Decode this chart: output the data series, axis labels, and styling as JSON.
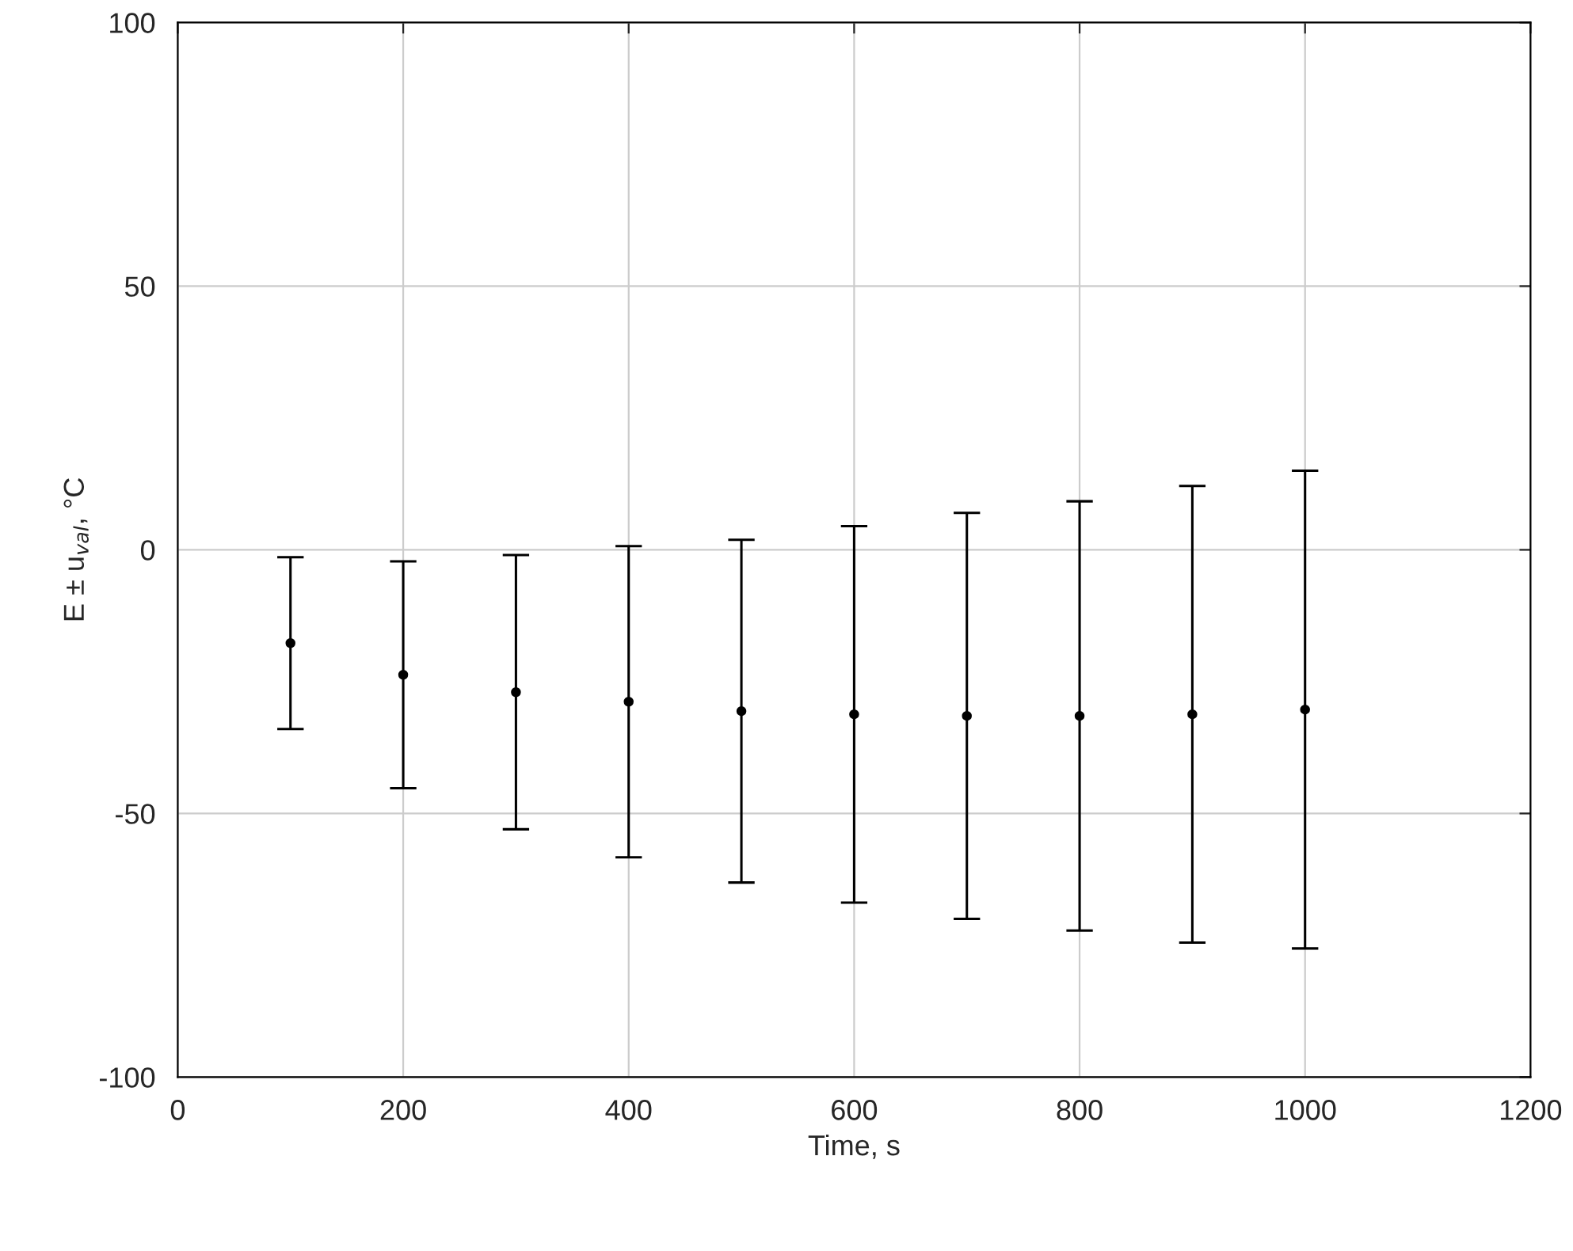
{
  "chart_data": {
    "type": "scatter",
    "xlabel": "Time, s",
    "ylabel": "E ± u$_{val}$, °C",
    "x": [
      100,
      200,
      300,
      400,
      500,
      600,
      700,
      800,
      900,
      1000
    ],
    "series": [
      {
        "color": "#000000",
        "values": [
          -17.7,
          -23.7,
          -27,
          -28.8,
          -30.6,
          -31.2,
          -31.5,
          -31.5,
          -31.2,
          -30.3
        ],
        "errors": [
          16.3,
          21.5,
          26,
          29.5,
          32.5,
          35.7,
          38.5,
          40.7,
          43.3,
          45.3
        ]
      }
    ],
    "xlim": [
      0,
      1200
    ],
    "xticks": [
      0,
      200,
      400,
      600,
      800,
      1000,
      1200
    ],
    "ylim": [
      -100,
      100
    ],
    "yticks": [
      -100,
      -50,
      0,
      50,
      100
    ],
    "grid": true,
    "marker": "circle",
    "legend": false
  }
}
